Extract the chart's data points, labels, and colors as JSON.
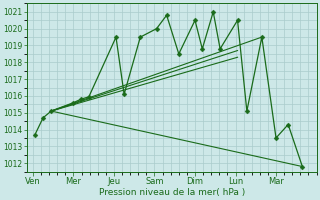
{
  "bg_color": "#cde8e8",
  "grid_color": "#aacccc",
  "line_color": "#1a6b1a",
  "marker_color": "#1a6b1a",
  "xlabel": "Pression niveau de la mer( hPa )",
  "ylim": [
    1011.5,
    1021.5
  ],
  "yticks": [
    1012,
    1013,
    1014,
    1015,
    1016,
    1017,
    1018,
    1019,
    1020,
    1021
  ],
  "day_labels": [
    "Ven",
    "Mer",
    "Jeu",
    "Sam",
    "Dim",
    "Lun",
    "Mar"
  ],
  "day_positions": [
    0,
    1,
    2,
    3,
    4,
    5,
    6
  ],
  "xlim": [
    -0.15,
    7.0
  ],
  "main_line": {
    "x": [
      0.05,
      0.25,
      0.45,
      1.0,
      1.18,
      1.38,
      2.05,
      2.25,
      2.65,
      3.05,
      3.3,
      3.6,
      4.0,
      4.18,
      4.45,
      4.62,
      5.05,
      5.28,
      5.65,
      6.0,
      6.3,
      6.65
    ],
    "y": [
      1013.7,
      1014.7,
      1015.1,
      1015.6,
      1015.8,
      1015.95,
      1019.5,
      1016.1,
      1019.5,
      1020.0,
      1020.8,
      1018.5,
      1020.5,
      1018.8,
      1021.0,
      1018.8,
      1020.5,
      1015.1,
      1019.5,
      1013.5,
      1014.3,
      1011.8
    ]
  },
  "straight_lines": [
    {
      "x": [
        0.45,
        6.65
      ],
      "y": [
        1015.1,
        1011.8
      ]
    },
    {
      "x": [
        0.45,
        5.05
      ],
      "y": [
        1015.1,
        1018.7
      ]
    },
    {
      "x": [
        0.45,
        5.05
      ],
      "y": [
        1015.1,
        1018.3
      ]
    },
    {
      "x": [
        0.45,
        5.65
      ],
      "y": [
        1015.1,
        1019.5
      ]
    }
  ]
}
